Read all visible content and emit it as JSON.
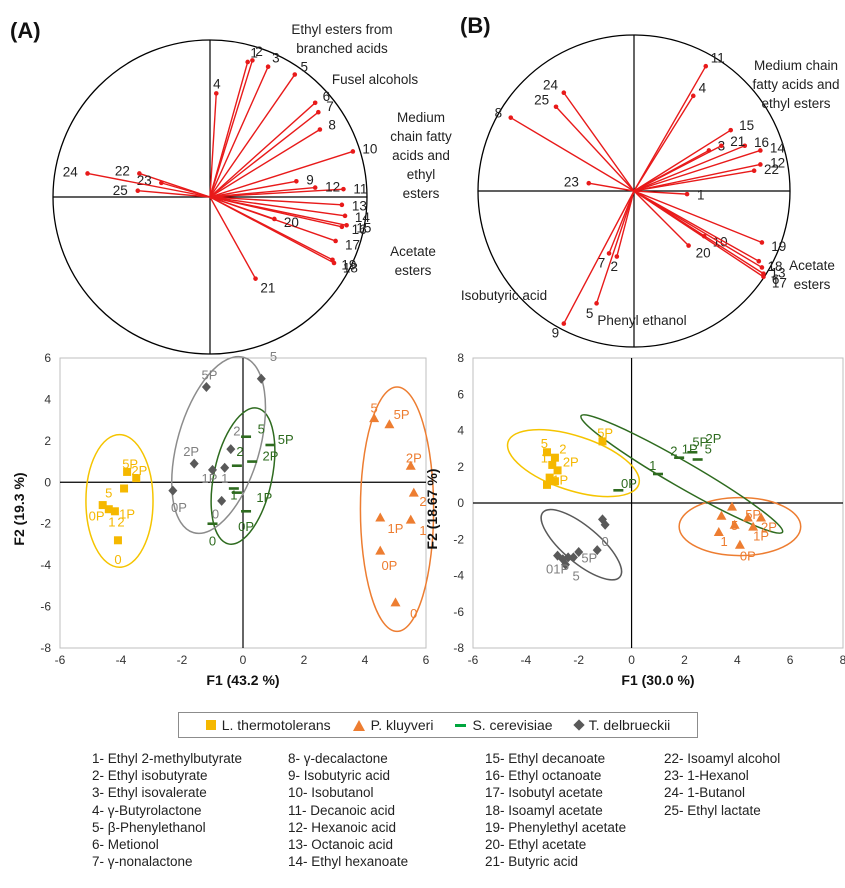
{
  "figure": {
    "panel_a_label": "(A)",
    "panel_b_label": "(B)",
    "legend": [
      {
        "label": "L. thermotolerans",
        "color": "#f5b800",
        "symbol": "square"
      },
      {
        "label": "P. kluyveri",
        "color": "#ed7d31",
        "symbol": "triangle"
      },
      {
        "label": "S. cerevisiae",
        "color": "#00a63e",
        "symbol": "dash"
      },
      {
        "label": "T. delbrueckii",
        "color": "#595959",
        "symbol": "diamond"
      }
    ],
    "compounds": [
      [
        "1- Ethyl 2-methylbutyrate",
        "2- Ethyl isobutyrate",
        "3- Ethyl isovalerate",
        "4- γ-Butyrolactone",
        "5- β-Phenylethanol",
        "6- Metionol",
        "7- γ-nonalactone"
      ],
      [
        "8- γ-decalactone",
        "9- Isobutyric acid",
        "10- Isobutanol",
        "11- Decanoic acid",
        "12- Hexanoic acid",
        "13- Octanoic acid",
        "14- Ethyl hexanoate"
      ],
      [
        "15- Ethyl decanoate",
        "16- Ethyl octanoate",
        "17- Isobutyl acetate",
        "18- Isoamyl acetate",
        "19- Phenylethyl acetate",
        "20- Ethyl acetate",
        "21- Butyric acid"
      ],
      [
        "22- Isoamyl alcohol",
        "23- 1-Hexanol",
        "24- 1-Butanol",
        "25- Ethyl lactate"
      ]
    ]
  },
  "chart_data": [
    {
      "type": "scatter",
      "kind": "loading_circle",
      "panel": "A",
      "color": "#e81a1a",
      "loadings": [
        {
          "label": "1",
          "x": 0.24,
          "y": 0.86
        },
        {
          "label": "2",
          "x": 0.27,
          "y": 0.87
        },
        {
          "label": "3",
          "x": 0.37,
          "y": 0.83
        },
        {
          "label": "4",
          "x": 0.04,
          "y": 0.66
        },
        {
          "label": "5",
          "x": 0.54,
          "y": 0.78
        },
        {
          "label": "6",
          "x": 0.67,
          "y": 0.6
        },
        {
          "label": "7",
          "x": 0.69,
          "y": 0.54
        },
        {
          "label": "8",
          "x": 0.7,
          "y": 0.43
        },
        {
          "label": "9",
          "x": 0.55,
          "y": 0.1
        },
        {
          "label": "10",
          "x": 0.91,
          "y": 0.29
        },
        {
          "label": "11",
          "x": 0.85,
          "y": 0.05
        },
        {
          "label": "12",
          "x": 0.67,
          "y": 0.06
        },
        {
          "label": "13",
          "x": 0.84,
          "y": -0.05
        },
        {
          "label": "14",
          "x": 0.86,
          "y": -0.12
        },
        {
          "label": "15",
          "x": 0.87,
          "y": -0.18
        },
        {
          "label": "16",
          "x": 0.84,
          "y": -0.19
        },
        {
          "label": "17",
          "x": 0.8,
          "y": -0.28
        },
        {
          "label": "18",
          "x": 0.79,
          "y": -0.42
        },
        {
          "label": "19",
          "x": 0.78,
          "y": -0.4
        },
        {
          "label": "20",
          "x": 0.41,
          "y": -0.14
        },
        {
          "label": "21",
          "x": 0.29,
          "y": -0.52
        },
        {
          "label": "22",
          "x": -0.45,
          "y": 0.15
        },
        {
          "label": "23",
          "x": -0.31,
          "y": 0.09
        },
        {
          "label": "24",
          "x": -0.78,
          "y": 0.15
        },
        {
          "label": "25",
          "x": -0.46,
          "y": 0.04
        }
      ],
      "group_labels": [
        "Ethyl esters from branched acids",
        "Fusel alcohols",
        "Medium chain fatty acids and ethyl esters",
        "Acetate esters"
      ]
    },
    {
      "type": "scatter",
      "kind": "loading_circle",
      "panel": "B",
      "color": "#e81a1a",
      "loadings": [
        {
          "label": "1",
          "x": 0.34,
          "y": -0.02
        },
        {
          "label": "2",
          "x": -0.11,
          "y": -0.42
        },
        {
          "label": "3",
          "x": 0.48,
          "y": 0.26
        },
        {
          "label": "4",
          "x": 0.38,
          "y": 0.61
        },
        {
          "label": "5",
          "x": -0.24,
          "y": -0.72
        },
        {
          "label": "6",
          "x": 0.83,
          "y": -0.53
        },
        {
          "label": "7",
          "x": -0.16,
          "y": -0.4
        },
        {
          "label": "8",
          "x": -0.79,
          "y": 0.47
        },
        {
          "label": "9",
          "x": -0.45,
          "y": -0.85
        },
        {
          "label": "10",
          "x": 0.45,
          "y": -0.29
        },
        {
          "label": "11",
          "x": 0.46,
          "y": 0.8
        },
        {
          "label": "12",
          "x": 0.81,
          "y": 0.17
        },
        {
          "label": "13",
          "x": 0.82,
          "y": -0.49
        },
        {
          "label": "14",
          "x": 0.81,
          "y": 0.26
        },
        {
          "label": "15",
          "x": 0.62,
          "y": 0.39
        },
        {
          "label": "16",
          "x": 0.71,
          "y": 0.29
        },
        {
          "label": "17",
          "x": 0.83,
          "y": -0.55
        },
        {
          "label": "18",
          "x": 0.8,
          "y": -0.45
        },
        {
          "label": "19",
          "x": 0.82,
          "y": -0.33
        },
        {
          "label": "20",
          "x": 0.35,
          "y": -0.35
        },
        {
          "label": "21",
          "x": 0.56,
          "y": 0.29
        },
        {
          "label": "22",
          "x": 0.77,
          "y": 0.13
        },
        {
          "label": "23",
          "x": -0.29,
          "y": 0.05
        },
        {
          "label": "24",
          "x": -0.45,
          "y": 0.63
        },
        {
          "label": "25",
          "x": -0.5,
          "y": 0.54
        }
      ],
      "group_labels": [
        "Medium chain fatty acids and ethyl esters",
        "Acetate esters",
        "Isobutyric acid",
        "Phenyl ethanol"
      ]
    },
    {
      "type": "scatter",
      "kind": "score_plot",
      "panel": "A",
      "xlabel": "F1 (43.2 %)",
      "ylabel": "F2 (19.3 %)",
      "xlim": [
        -6,
        6
      ],
      "ylim": [
        -8,
        6
      ],
      "xticks": [
        -6,
        -4,
        -2,
        0,
        2,
        4,
        6
      ],
      "yticks": [
        -8,
        -6,
        -4,
        -2,
        0,
        2,
        4,
        6
      ],
      "series": [
        {
          "name": "L. thermotolerans",
          "color": "#f5b800",
          "ellipse_color": "#f5c400",
          "symbol": "square",
          "points": [
            {
              "x": -4.6,
              "y": -1.1
            },
            {
              "x": -4.4,
              "y": -1.3
            },
            {
              "x": -4.2,
              "y": -1.4
            },
            {
              "x": -4.1,
              "y": -2.8
            },
            {
              "x": -3.9,
              "y": -0.3
            },
            {
              "x": -3.8,
              "y": 0.5
            },
            {
              "x": -3.5,
              "y": 0.2
            }
          ],
          "labels": [
            {
              "t": "0P",
              "x": -4.8,
              "y": -1.6
            },
            {
              "t": "5",
              "x": -4.4,
              "y": -0.5
            },
            {
              "t": "1",
              "x": -4.3,
              "y": -1.9
            },
            {
              "t": "2",
              "x": -4.0,
              "y": -1.9
            },
            {
              "t": "1P",
              "x": -3.8,
              "y": -1.5
            },
            {
              "t": "5P",
              "x": -3.7,
              "y": 0.9
            },
            {
              "t": "2P",
              "x": -3.4,
              "y": 0.6
            },
            {
              "t": "0",
              "x": -4.1,
              "y": -3.7
            }
          ]
        },
        {
          "name": "P. kluyveri",
          "color": "#ed7d31",
          "ellipse_color": "#ed7d31",
          "symbol": "triangle",
          "points": [
            {
              "x": 4.3,
              "y": 3.1
            },
            {
              "x": 4.8,
              "y": 2.8
            },
            {
              "x": 5.5,
              "y": 0.8
            },
            {
              "x": 5.6,
              "y": -0.5
            },
            {
              "x": 4.5,
              "y": -1.7
            },
            {
              "x": 5.5,
              "y": -1.8
            },
            {
              "x": 4.5,
              "y": -3.3
            },
            {
              "x": 5.0,
              "y": -5.8
            }
          ],
          "labels": [
            {
              "t": "5",
              "x": 4.3,
              "y": 3.6
            },
            {
              "t": "5P",
              "x": 5.2,
              "y": 3.3
            },
            {
              "t": "2P",
              "x": 5.6,
              "y": 1.2
            },
            {
              "t": "2",
              "x": 5.9,
              "y": -0.9
            },
            {
              "t": "1P",
              "x": 5.0,
              "y": -2.2
            },
            {
              "t": "1",
              "x": 5.9,
              "y": -2.3
            },
            {
              "t": "0P",
              "x": 4.8,
              "y": -4.0
            },
            {
              "t": "0",
              "x": 5.6,
              "y": -6.3
            }
          ]
        },
        {
          "name": "S. cerevisiae",
          "color": "#00a63e",
          "ellipse_color": "#2e6b1f",
          "symbol": "dash",
          "points": [
            {
              "x": 0.1,
              "y": 2.2
            },
            {
              "x": 0.3,
              "y": 1.0
            },
            {
              "x": 0.9,
              "y": 1.8
            },
            {
              "x": -0.2,
              "y": 0.8
            },
            {
              "x": -0.3,
              "y": -0.3
            },
            {
              "x": -0.2,
              "y": -0.5
            },
            {
              "x": -1.0,
              "y": -2.0
            },
            {
              "x": 0.1,
              "y": -1.4
            }
          ],
          "labels": [
            {
              "t": "5",
              "x": 0.6,
              "y": 2.6
            },
            {
              "t": "5P",
              "x": 1.4,
              "y": 2.1
            },
            {
              "t": "2P",
              "x": 0.9,
              "y": 1.3
            },
            {
              "t": "2",
              "x": -0.1,
              "y": 1.5
            },
            {
              "t": "1P",
              "x": 0.7,
              "y": -0.7
            },
            {
              "t": "1",
              "x": -0.3,
              "y": -0.6
            },
            {
              "t": "0P",
              "x": 0.1,
              "y": -2.1
            },
            {
              "t": "0",
              "x": -1.0,
              "y": -2.8
            }
          ]
        },
        {
          "name": "T. delbrueckii",
          "color": "#595959",
          "ellipse_color": "#8c8c8c",
          "symbol": "diamond",
          "points": [
            {
              "x": -1.2,
              "y": 4.6
            },
            {
              "x": 0.6,
              "y": 5.0
            },
            {
              "x": -2.3,
              "y": -0.4
            },
            {
              "x": -1.6,
              "y": 0.9
            },
            {
              "x": -1.0,
              "y": 0.6
            },
            {
              "x": -0.6,
              "y": 0.7
            },
            {
              "x": -0.4,
              "y": 1.6
            },
            {
              "x": -0.7,
              "y": -0.9
            }
          ],
          "labels": [
            {
              "t": "5P",
              "x": -1.1,
              "y": 5.2
            },
            {
              "t": "5",
              "x": 1.0,
              "y": 6.1
            },
            {
              "t": "2P",
              "x": -1.7,
              "y": 1.5
            },
            {
              "t": "2",
              "x": -0.2,
              "y": 2.5
            },
            {
              "t": "1P",
              "x": -1.1,
              "y": 0.2
            },
            {
              "t": "1",
              "x": -0.6,
              "y": 0.2
            },
            {
              "t": "0P",
              "x": -2.1,
              "y": -1.2
            },
            {
              "t": "0",
              "x": -0.9,
              "y": -1.5
            }
          ]
        }
      ]
    },
    {
      "type": "scatter",
      "kind": "score_plot",
      "panel": "B",
      "xlabel": "F1 (30.0 %)",
      "ylabel": "F2 (18.67 %)",
      "xlim": [
        -6,
        8
      ],
      "ylim": [
        -8,
        8
      ],
      "xticks": [
        -6,
        -4,
        -2,
        0,
        2,
        4,
        6,
        8
      ],
      "yticks": [
        -8,
        -6,
        -4,
        -2,
        0,
        2,
        4,
        6,
        8
      ],
      "series": [
        {
          "name": "L. thermotolerans",
          "color": "#f5b800",
          "ellipse_color": "#f5c400",
          "symbol": "square",
          "points": [
            {
              "x": -3.2,
              "y": 2.8
            },
            {
              "x": -2.9,
              "y": 2.5
            },
            {
              "x": -3.0,
              "y": 2.1
            },
            {
              "x": -2.8,
              "y": 1.8
            },
            {
              "x": -3.1,
              "y": 1.4
            },
            {
              "x": -2.9,
              "y": 1.2
            },
            {
              "x": -3.2,
              "y": 1.0
            },
            {
              "x": -1.1,
              "y": 3.4
            }
          ],
          "labels": [
            {
              "t": "5",
              "x": -3.3,
              "y": 3.3
            },
            {
              "t": "2",
              "x": -2.6,
              "y": 3.0
            },
            {
              "t": "2P",
              "x": -2.3,
              "y": 2.3
            },
            {
              "t": "1",
              "x": -3.3,
              "y": 2.5
            },
            {
              "t": "1P",
              "x": -2.7,
              "y": 1.3
            },
            {
              "t": "5P",
              "x": -1.0,
              "y": 3.9
            }
          ]
        },
        {
          "name": "P. kluyveri",
          "color": "#ed7d31",
          "ellipse_color": "#ed7d31",
          "symbol": "triangle",
          "points": [
            {
              "x": 3.8,
              "y": -0.2
            },
            {
              "x": 3.4,
              "y": -0.7
            },
            {
              "x": 4.4,
              "y": -0.8
            },
            {
              "x": 4.9,
              "y": -0.8
            },
            {
              "x": 3.9,
              "y": -1.2
            },
            {
              "x": 4.6,
              "y": -1.3
            },
            {
              "x": 3.3,
              "y": -1.6
            },
            {
              "x": 4.1,
              "y": -2.3
            }
          ],
          "labels": [
            {
              "t": "5",
              "x": 3.9,
              "y": -1.2
            },
            {
              "t": "5P",
              "x": 4.6,
              "y": -0.6
            },
            {
              "t": "2P",
              "x": 5.2,
              "y": -1.3
            },
            {
              "t": "1P",
              "x": 4.9,
              "y": -1.8
            },
            {
              "t": "1",
              "x": 3.5,
              "y": -2.1
            },
            {
              "t": "0P",
              "x": 4.4,
              "y": -2.9
            }
          ]
        },
        {
          "name": "S. cerevisiae",
          "color": "#00a63e",
          "ellipse_color": "#2e6b1f",
          "symbol": "dash",
          "points": [
            {
              "x": -0.5,
              "y": 0.7
            },
            {
              "x": 1.0,
              "y": 1.6
            },
            {
              "x": 1.8,
              "y": 2.5
            },
            {
              "x": 2.3,
              "y": 2.8
            },
            {
              "x": 2.5,
              "y": 2.4
            }
          ],
          "labels": [
            {
              "t": "0P",
              "x": -0.1,
              "y": 1.1
            },
            {
              "t": "1",
              "x": 0.8,
              "y": 2.1
            },
            {
              "t": "2",
              "x": 1.6,
              "y": 2.9
            },
            {
              "t": "1P",
              "x": 2.2,
              "y": 3.0
            },
            {
              "t": "5P",
              "x": 2.6,
              "y": 3.4
            },
            {
              "t": "5",
              "x": 2.9,
              "y": 3.0
            },
            {
              "t": "2P",
              "x": 3.1,
              "y": 3.6
            }
          ]
        },
        {
          "name": "T. delbrueckii",
          "color": "#595959",
          "ellipse_color": "#595959",
          "symbol": "diamond",
          "points": [
            {
              "x": -1.1,
              "y": -0.9
            },
            {
              "x": -1.0,
              "y": -1.2
            },
            {
              "x": -1.3,
              "y": -2.6
            },
            {
              "x": -2.0,
              "y": -2.7
            },
            {
              "x": -2.2,
              "y": -3.0
            },
            {
              "x": -2.4,
              "y": -3.0
            },
            {
              "x": -2.6,
              "y": -3.1
            },
            {
              "x": -2.8,
              "y": -2.9
            },
            {
              "x": -2.5,
              "y": -3.4
            }
          ],
          "labels": [
            {
              "t": "0",
              "x": -1.0,
              "y": -2.1
            },
            {
              "t": "5P",
              "x": -1.6,
              "y": -3.0
            },
            {
              "t": "01P",
              "x": -2.8,
              "y": -3.6
            },
            {
              "t": "5",
              "x": -2.1,
              "y": -4.0
            }
          ]
        }
      ]
    }
  ]
}
